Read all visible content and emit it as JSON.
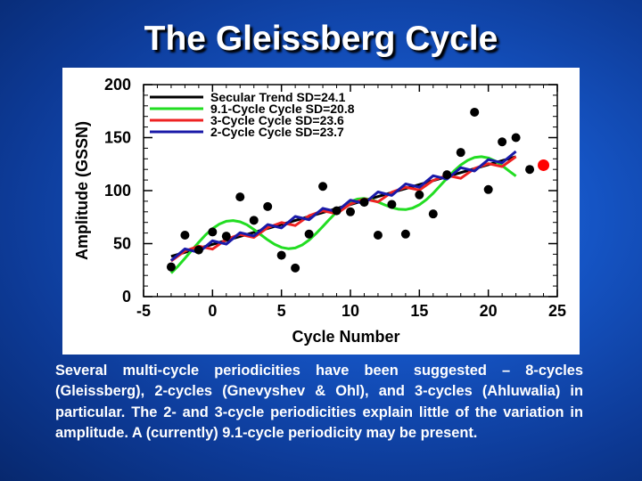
{
  "title": "The Gleissberg Cycle",
  "caption": "Several multi-cycle periodicities have been suggested – 8-cycles (Gleissberg), 2-cycles (Gnevyshev & Ohl), and 3-cycles (Ahluwalia) in particular. The 2- and 3-cycle periodicities explain little of the variation in amplitude. A (currently) 9.1-cycle periodicity may be present.",
  "chart_data": {
    "type": "scatter",
    "xlabel": "Cycle Number",
    "ylabel": "Amplitude (GSSN)",
    "xlim": [
      -5,
      25
    ],
    "ylim": [
      0,
      200
    ],
    "xticks": [
      -5,
      0,
      5,
      10,
      15,
      20,
      25
    ],
    "yticks": [
      0,
      50,
      100,
      150,
      200
    ],
    "legend_position": "top-left",
    "points": [
      {
        "x": -3,
        "y": 28
      },
      {
        "x": -2,
        "y": 58
      },
      {
        "x": -1,
        "y": 44
      },
      {
        "x": 0,
        "y": 61
      },
      {
        "x": 1,
        "y": 57
      },
      {
        "x": 2,
        "y": 94
      },
      {
        "x": 3,
        "y": 72
      },
      {
        "x": 4,
        "y": 85
      },
      {
        "x": 5,
        "y": 39
      },
      {
        "x": 6,
        "y": 27
      },
      {
        "x": 7,
        "y": 59
      },
      {
        "x": 8,
        "y": 104
      },
      {
        "x": 9,
        "y": 81
      },
      {
        "x": 10,
        "y": 80
      },
      {
        "x": 11,
        "y": 89
      },
      {
        "x": 12,
        "y": 58
      },
      {
        "x": 13,
        "y": 87
      },
      {
        "x": 14,
        "y": 59
      },
      {
        "x": 15,
        "y": 96
      },
      {
        "x": 16,
        "y": 78
      },
      {
        "x": 17,
        "y": 115
      },
      {
        "x": 18,
        "y": 136
      },
      {
        "x": 19,
        "y": 174
      },
      {
        "x": 20,
        "y": 101
      },
      {
        "x": 21,
        "y": 146
      },
      {
        "x": 22,
        "y": 150
      },
      {
        "x": 23,
        "y": 120
      }
    ],
    "highlight_point": {
      "x": 24,
      "y": 124,
      "color": "#ff0000"
    },
    "series": [
      {
        "name": "Secular Trend SD=24.1",
        "color": "#000000",
        "x": [
          -3,
          22
        ],
        "y": [
          38,
          132
        ]
      },
      {
        "name": "9.1-Cycle Cycle SD=20.8",
        "color": "#22dd22",
        "x": [
          -3,
          -2.5,
          -2,
          -1.5,
          -1,
          -0.5,
          0,
          0.5,
          1,
          1.5,
          2,
          2.5,
          3,
          3.5,
          4,
          4.5,
          5,
          5.5,
          6,
          6.5,
          7,
          7.5,
          8,
          8.5,
          9,
          9.5,
          10,
          10.5,
          11,
          11.5,
          12,
          12.5,
          13,
          13.5,
          14,
          14.5,
          15,
          15.5,
          16,
          16.5,
          17,
          17.5,
          18,
          18.5,
          19,
          19.5,
          20,
          20.5,
          21,
          21.5,
          22
        ],
        "y": [
          22.2,
          28.7,
          36.1,
          43.7,
          51.3,
          58.3,
          64.1,
          68.5,
          71.1,
          71.8,
          70.6,
          67.7,
          63.4,
          58.4,
          53.5,
          49.3,
          46.4,
          45.2,
          45.9,
          48.7,
          53.4,
          59.4,
          66.2,
          73.2,
          79.8,
          85.4,
          89.6,
          92.0,
          92.6,
          91.5,
          89.3,
          86.5,
          84.0,
          82.4,
          82.1,
          83.5,
          86.6,
          91.4,
          97.5,
          104.5,
          111.6,
          118.4,
          124.2,
          128.6,
          131.3,
          132.0,
          130.8,
          127.9,
          123.6,
          118.6,
          113.7
        ]
      },
      {
        "name": "3-Cycle Cycle SD=23.6",
        "color": "#ee2222",
        "x": [
          -3,
          -2,
          -1,
          0,
          1,
          2,
          3,
          4,
          5,
          6,
          7,
          8,
          9,
          10,
          11,
          12,
          13,
          14,
          15,
          16,
          17,
          18,
          19,
          20,
          21,
          22
        ],
        "y": [
          33.5,
          43,
          47.6,
          44.8,
          54,
          58.7,
          55.9,
          65.1,
          69.8,
          67.1,
          76.3,
          81,
          78.2,
          87.4,
          92.1,
          89.3,
          98.5,
          103.2,
          100.5,
          109.7,
          114.4,
          111.6,
          120.8,
          125.5,
          122.7,
          132
        ]
      },
      {
        "name": "2-Cycle Cycle SD=23.7",
        "color": "#1a1aa8",
        "x": [
          -3,
          -2,
          -1,
          0,
          1,
          2,
          3,
          4,
          5,
          6,
          7,
          8,
          9,
          10,
          11,
          12,
          13,
          14,
          15,
          16,
          17,
          18,
          19,
          20,
          21,
          22
        ],
        "y": [
          34,
          45,
          41.8,
          52.7,
          49.5,
          60.3,
          57.2,
          68,
          64.8,
          75.6,
          72.5,
          83.3,
          80.2,
          91,
          87.8,
          98.7,
          95.5,
          106.3,
          103.2,
          114,
          110.8,
          121.7,
          118.5,
          129.3,
          126.2,
          137
        ]
      }
    ]
  }
}
